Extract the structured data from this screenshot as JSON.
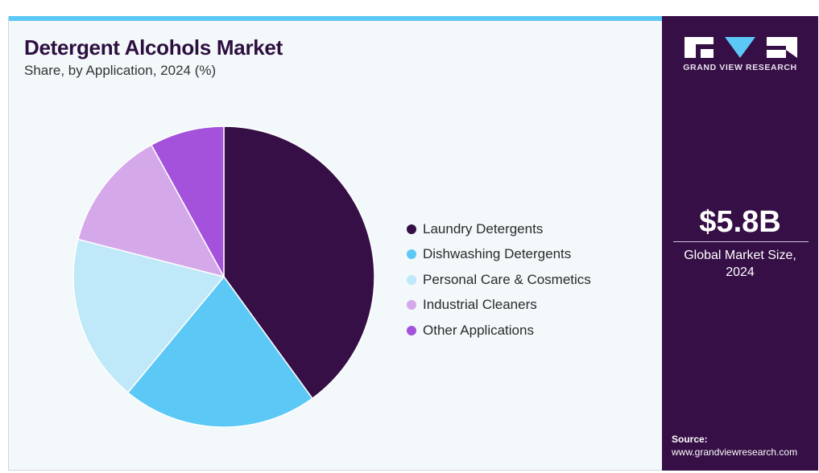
{
  "header": {
    "title": "Detergent Alcohols Market",
    "subtitle": "Share, by Application, 2024 (%)"
  },
  "chart_data": {
    "type": "pie",
    "title": "Detergent Alcohols Market",
    "subtitle": "Share, by Application, 2024 (%)",
    "categories": [
      "Laundry Detergents",
      "Dishwashing Detergents",
      "Personal Care & Cosmetics",
      "Industrial Cleaners",
      "Other Applications"
    ],
    "values": [
      40,
      21,
      18,
      13,
      8
    ],
    "colors": [
      "#350f45",
      "#5bc8f5",
      "#bfe8f9",
      "#d5a8ea",
      "#a452db"
    ],
    "legend_position": "right"
  },
  "sidebar": {
    "brand": "GRAND VIEW RESEARCH",
    "market_value": "$5.8B",
    "market_label_line1": "Global Market Size,",
    "market_label_line2": "2024",
    "source_label": "Source:",
    "source_url": "www.grandviewresearch.com"
  }
}
